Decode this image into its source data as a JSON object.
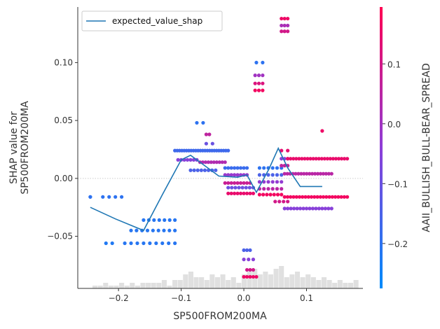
{
  "chart_data": {
    "type": "scatter",
    "xlabel": "SP500FROM200MA",
    "ylabel": "SHAP value for\nSP500FROM200MA",
    "xlim": [
      -0.265,
      0.19
    ],
    "ylim": [
      -0.095,
      0.148
    ],
    "x_ticks": [
      -0.2,
      -0.1,
      0.0,
      0.1
    ],
    "x_tick_labels": [
      "−0.2",
      "−0.1",
      "0.0",
      "0.1"
    ],
    "y_ticks": [
      -0.05,
      0.0,
      0.05,
      0.1
    ],
    "y_tick_labels": [
      "−0.05",
      "0.00",
      "0.05",
      "0.10"
    ],
    "legend": {
      "position": "upper-left",
      "entries": [
        "expected_value_shap"
      ]
    },
    "line_color": "#1f77b4",
    "histogram_color": "#e0e0e0",
    "zero_line_color": "#cccccc",
    "colorbar": {
      "label": "AAII_BULLISH_BULL-BEAR_SPREAD",
      "range": [
        -0.275,
        0.195
      ],
      "ticks": [
        -0.2,
        -0.1,
        0.0,
        0.1
      ],
      "tick_labels": [
        "−0.2",
        "−0.1",
        "0.0",
        "0.1"
      ],
      "low_color": "#008bfb",
      "mid_color": "#8e3ed8",
      "high_color": "#ff0052"
    },
    "line_series": {
      "name": "expected_value_shap",
      "x": [
        -0.245,
        -0.205,
        -0.16,
        -0.13,
        -0.1,
        -0.085,
        -0.065,
        -0.04,
        -0.01,
        0.005,
        0.02,
        0.04,
        0.055,
        0.07,
        0.09,
        0.125
      ],
      "y": [
        -0.025,
        -0.035,
        -0.045,
        -0.014,
        0.016,
        0.02,
        0.012,
        0.002,
        0.001,
        0.003,
        -0.012,
        0.008,
        0.026,
        0.009,
        -0.007,
        -0.007
      ]
    },
    "scatter_clusters": [
      {
        "x0": -0.245,
        "x1": -0.245,
        "y": -0.016,
        "c": -0.2,
        "n": 2
      },
      {
        "x0": -0.225,
        "x1": -0.195,
        "y": -0.016,
        "c": -0.2,
        "n": 4
      },
      {
        "x0": -0.22,
        "x1": -0.21,
        "y": -0.056,
        "c": -0.22,
        "n": 2
      },
      {
        "x0": -0.19,
        "x1": -0.11,
        "y": -0.056,
        "c": -0.21,
        "n": 9
      },
      {
        "x0": -0.18,
        "x1": -0.11,
        "y": -0.045,
        "c": -0.21,
        "n": 9
      },
      {
        "x0": -0.16,
        "x1": -0.11,
        "y": -0.036,
        "c": -0.21,
        "n": 7
      },
      {
        "x0": -0.11,
        "x1": -0.025,
        "y": 0.024,
        "c": -0.17,
        "n": 24
      },
      {
        "x0": -0.105,
        "x1": -0.075,
        "y": 0.016,
        "c": -0.05,
        "n": 7
      },
      {
        "x0": -0.07,
        "x1": -0.03,
        "y": 0.014,
        "c": 0.03,
        "n": 10
      },
      {
        "x0": -0.085,
        "x1": -0.045,
        "y": 0.007,
        "c": -0.15,
        "n": 8
      },
      {
        "x0": -0.075,
        "x1": -0.065,
        "y": 0.048,
        "c": -0.2,
        "n": 2
      },
      {
        "x0": -0.06,
        "x1": -0.055,
        "y": 0.038,
        "c": 0.06,
        "n": 2
      },
      {
        "x0": -0.06,
        "x1": -0.05,
        "y": 0.03,
        "c": -0.1,
        "n": 2
      },
      {
        "x0": -0.03,
        "x1": 0.005,
        "y": 0.009,
        "c": -0.18,
        "n": 8
      },
      {
        "x0": -0.03,
        "x1": 0.005,
        "y": 0.003,
        "c": -0.02,
        "n": 8
      },
      {
        "x0": -0.03,
        "x1": 0.01,
        "y": -0.004,
        "c": 0.08,
        "n": 9
      },
      {
        "x0": -0.025,
        "x1": 0.015,
        "y": -0.008,
        "c": -0.1,
        "n": 8
      },
      {
        "x0": -0.025,
        "x1": 0.015,
        "y": -0.013,
        "c": 0.15,
        "n": 9
      },
      {
        "x0": 0.0,
        "x1": 0.01,
        "y": -0.062,
        "c": -0.15,
        "n": 3
      },
      {
        "x0": 0.0,
        "x1": 0.015,
        "y": -0.07,
        "c": -0.05,
        "n": 3
      },
      {
        "x0": 0.005,
        "x1": 0.015,
        "y": -0.079,
        "c": 0.1,
        "n": 3
      },
      {
        "x0": 0.0,
        "x1": 0.02,
        "y": -0.085,
        "c": 0.16,
        "n": 5
      },
      {
        "x0": 0.02,
        "x1": 0.03,
        "y": 0.1,
        "c": -0.2,
        "n": 2
      },
      {
        "x0": 0.018,
        "x1": 0.03,
        "y": 0.089,
        "c": 0.0,
        "n": 3
      },
      {
        "x0": 0.018,
        "x1": 0.03,
        "y": 0.082,
        "c": 0.12,
        "n": 3
      },
      {
        "x0": 0.018,
        "x1": 0.03,
        "y": 0.076,
        "c": 0.17,
        "n": 3
      },
      {
        "x0": 0.06,
        "x1": 0.07,
        "y": 0.138,
        "c": 0.16,
        "n": 3
      },
      {
        "x0": 0.06,
        "x1": 0.07,
        "y": 0.132,
        "c": 0.02,
        "n": 3
      },
      {
        "x0": 0.06,
        "x1": 0.07,
        "y": 0.127,
        "c": 0.1,
        "n": 3
      },
      {
        "x0": 0.025,
        "x1": 0.06,
        "y": 0.009,
        "c": -0.2,
        "n": 6
      },
      {
        "x0": 0.025,
        "x1": 0.06,
        "y": 0.003,
        "c": -0.15,
        "n": 6
      },
      {
        "x0": 0.025,
        "x1": 0.06,
        "y": -0.003,
        "c": -0.03,
        "n": 6
      },
      {
        "x0": 0.025,
        "x1": 0.06,
        "y": -0.009,
        "c": 0.05,
        "n": 6
      },
      {
        "x0": 0.025,
        "x1": 0.06,
        "y": -0.014,
        "c": 0.17,
        "n": 7
      },
      {
        "x0": 0.05,
        "x1": 0.07,
        "y": -0.02,
        "c": 0.1,
        "n": 4
      },
      {
        "x0": 0.06,
        "x1": 0.07,
        "y": 0.024,
        "c": 0.14,
        "n": 2
      },
      {
        "x0": 0.06,
        "x1": 0.07,
        "y": 0.017,
        "c": -0.05,
        "n": 3
      },
      {
        "x0": 0.06,
        "x1": 0.07,
        "y": 0.011,
        "c": 0.06,
        "n": 3
      },
      {
        "x0": 0.07,
        "x1": 0.165,
        "y": 0.017,
        "c": 0.15,
        "n": 22
      },
      {
        "x0": 0.065,
        "x1": 0.14,
        "y": 0.004,
        "c": 0.05,
        "n": 18
      },
      {
        "x0": 0.065,
        "x1": 0.165,
        "y": -0.016,
        "c": 0.17,
        "n": 22
      },
      {
        "x0": 0.065,
        "x1": 0.14,
        "y": -0.026,
        "c": -0.05,
        "n": 16
      },
      {
        "x0": 0.125,
        "x1": 0.125,
        "y": 0.041,
        "c": 0.16,
        "n": 1
      }
    ],
    "histogram": {
      "bin_start": -0.25,
      "bin_width": 0.0085,
      "counts": [
        0,
        1,
        1,
        2,
        1,
        1,
        2,
        1,
        2,
        1,
        2,
        2,
        2,
        2,
        3,
        1,
        3,
        3,
        5,
        6,
        4,
        4,
        3,
        5,
        4,
        5,
        3,
        4,
        2,
        5,
        6,
        7,
        5,
        6,
        5,
        7,
        8,
        4,
        5,
        6,
        4,
        5,
        4,
        3,
        4,
        3,
        2,
        3,
        2,
        2,
        3
      ]
    }
  }
}
